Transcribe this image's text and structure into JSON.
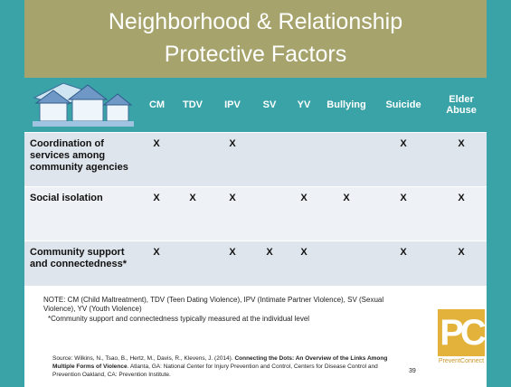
{
  "header": {
    "title": [
      "Neighborhood & Relationship",
      "Protective Factors"
    ]
  },
  "table": {
    "columns": [
      "CM",
      "TDV",
      "IPV",
      "SV",
      "YV",
      "Bullying",
      "Suicide",
      "Elder Abuse"
    ],
    "rows": [
      {
        "label": "Coordination of services among community agencies",
        "cells": [
          "X",
          null,
          "X",
          null,
          null,
          null,
          "X",
          "X"
        ]
      },
      {
        "label": "Social isolation",
        "cells": [
          "X",
          "X",
          "X",
          null,
          "X",
          "X",
          "X",
          "X"
        ]
      },
      {
        "label": "Community support and connectedness*",
        "cells": [
          "X",
          null,
          "X",
          "X",
          "X",
          null,
          "X",
          "X"
        ]
      }
    ]
  },
  "notes": {
    "abbreviations": "NOTE: CM (Child Maltreatment), TDV (Teen Dating Violence), IPV (Intimate Partner Violence), SV (Sexual Violence), YV (Youth Violence)",
    "asterisk": "*Community support and connectedness typically measured at the individual level",
    "source": [
      "Source: Wilkins, N., Tsao, B., Hertz, M., Davis, R., Klevens, J. (2014). ",
      "Connecting the Dots: An Overview of the Links Among Multiple Forms of Violence",
      ". Atlanta, GA: National Center for Injury Prevention and Control, Centers for Disease Control and Prevention Oakland, CA: Prevention Institute."
    ]
  },
  "page_number": "39",
  "logo": {
    "mark": "PC",
    "name": "PreventConnect"
  }
}
